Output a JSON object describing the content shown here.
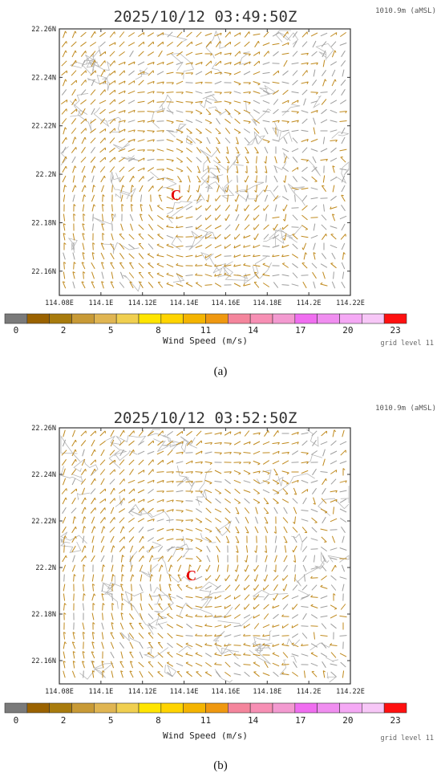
{
  "figure": {
    "captions": [
      "(a)",
      "(b)"
    ],
    "colors": {
      "wind_barb": "#c08a1e",
      "contour": "#b8b8b8",
      "center_marker": "#e60000",
      "frame": "#333333"
    }
  },
  "chart_data": [
    {
      "type": "wind-field-map",
      "title": "2025/10/12  03:49:50Z",
      "altitude_label": "1010.9m (aMSL)",
      "grid_label": "grid level 11",
      "colorbar_title": "Wind Speed (m/s)",
      "center_marker": {
        "label": "C",
        "lon": 114.133,
        "lat": 22.192
      },
      "x_tick_labels": [
        "114.08E",
        "114.1E",
        "114.12E",
        "114.14E",
        "114.16E",
        "114.18E",
        "114.2E",
        "114.22E"
      ],
      "y_tick_labels": [
        "22.26N",
        "22.24N",
        "22.22N",
        "22.2N",
        "22.18N",
        "22.16N"
      ],
      "xlim": [
        114.08,
        114.22
      ],
      "ylim": [
        22.15,
        22.26
      ],
      "colorbar": {
        "tick_labels": [
          "0",
          "2",
          "5",
          "8",
          "11",
          "14",
          "17",
          "20",
          "23"
        ],
        "colors": [
          "#7a7a7a",
          "#9a6200",
          "#a87b0d",
          "#c89a36",
          "#e0b552",
          "#f0cf50",
          "#ffe500",
          "#ffd400",
          "#f4b400",
          "#ef9810",
          "#f4859c",
          "#f78fb4",
          "#f39ad0",
          "#f06ef0",
          "#f08ef0",
          "#f5a9f5",
          "#f7c7f7",
          "#ff1010"
        ]
      }
    },
    {
      "type": "wind-field-map",
      "title": "2025/10/12  03:52:50Z",
      "altitude_label": "1010.9m (aMSL)",
      "grid_label": "grid level 11",
      "colorbar_title": "Wind Speed (m/s)",
      "center_marker": {
        "label": "C",
        "lon": 114.144,
        "lat": 22.2
      },
      "x_tick_labels": [
        "114.08E",
        "114.1E",
        "114.12E",
        "114.14E",
        "114.16E",
        "114.18E",
        "114.2E",
        "114.22E"
      ],
      "y_tick_labels": [
        "22.26N",
        "22.24N",
        "22.22N",
        "22.2N",
        "22.18N",
        "22.16N"
      ],
      "xlim": [
        114.08,
        114.22
      ],
      "ylim": [
        22.15,
        22.26
      ],
      "colorbar": {
        "tick_labels": [
          "0",
          "2",
          "5",
          "8",
          "11",
          "14",
          "17",
          "20",
          "23"
        ],
        "colors": [
          "#7a7a7a",
          "#9a6200",
          "#a87b0d",
          "#c89a36",
          "#e0b552",
          "#f0cf50",
          "#ffe500",
          "#ffd400",
          "#f4b400",
          "#ef9810",
          "#f4859c",
          "#f78fb4",
          "#f39ad0",
          "#f06ef0",
          "#f08ef0",
          "#f5a9f5",
          "#f7c7f7",
          "#ff1010"
        ]
      }
    }
  ]
}
